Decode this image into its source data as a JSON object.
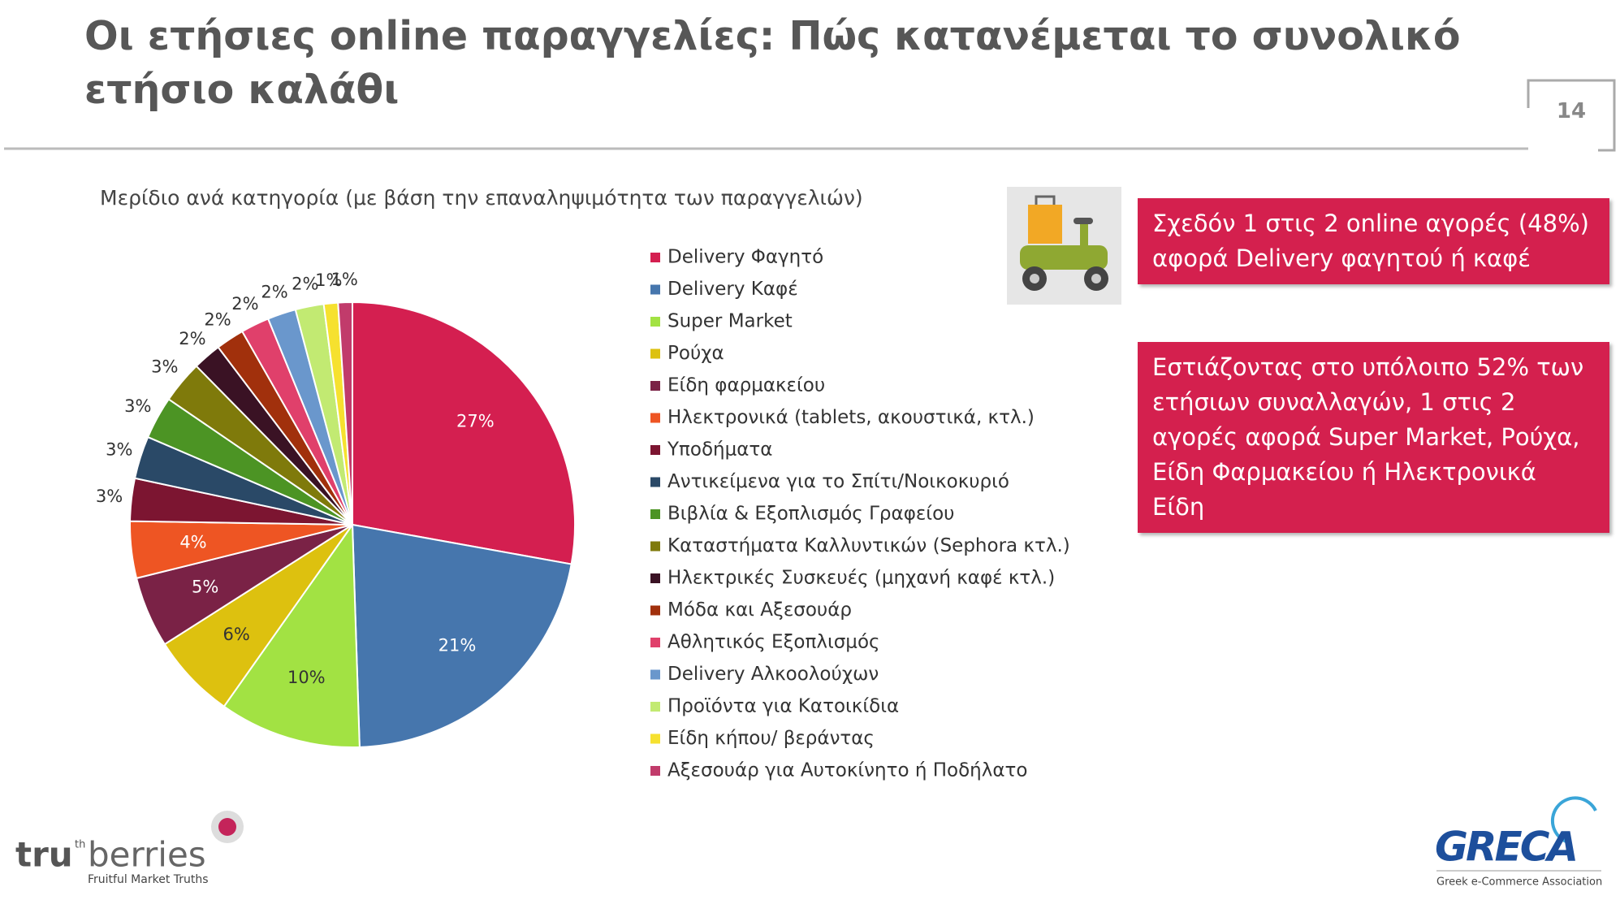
{
  "header": {
    "title": "Οι ετήσιες online παραγγελίες: Πώς κατανέμεται το συνολικό ετήσιο καλάθι",
    "page": "14"
  },
  "chart_data": {
    "type": "pie",
    "title": "Μερίδιο ανά κατηγορία (με βάση την επαναληψιμότητα των παραγγελιών)",
    "categories": [
      "Delivery Φαγητό",
      "Delivery Καφέ",
      "Super Market",
      "Ρούχα",
      "Είδη φαρμακείου",
      "Ηλεκτρονικά (tablets, ακουστικά, κτλ.)",
      "Υποδήματα",
      "Αντικείμενα για το Σπίτι/Νοικοκυριό",
      "Βιβλία & Εξοπλισμός Γραφείου",
      "Καταστήματα Καλλυντικών (Sephora κτλ.)",
      "Ηλεκτρικές Συσκευές (μηχανή καφέ κτλ.)",
      "Μόδα και Αξεσουάρ",
      "Αθλητικός Εξοπλισμός",
      "Delivery Αλκοολούχων",
      "Προϊόντα για Κατοικίδια",
      "Είδη κήπου/ βεράντας",
      "Αξεσουάρ για Αυτοκίνητο ή Ποδήλατο"
    ],
    "values": [
      27,
      21,
      10,
      6,
      5,
      4,
      3,
      3,
      3,
      3,
      2,
      2,
      2,
      2,
      2,
      1,
      1
    ],
    "value_labels": [
      "27%",
      "21%",
      "10%",
      "6%",
      "5%",
      "4%",
      "3%",
      "3%",
      "3%",
      "3%",
      "2%",
      "2%",
      "2%",
      "2%",
      "2%",
      "1%",
      "1%"
    ],
    "colors": [
      "#d41f50",
      "#4676ad",
      "#a2e243",
      "#ddc10f",
      "#7a2246",
      "#ee5523",
      "#7c1531",
      "#2a4967",
      "#4c9424",
      "#7f7a0b",
      "#3a1224",
      "#a1300c",
      "#e0406b",
      "#6a97cc",
      "#c2ea72",
      "#f6e12f",
      "#c13b6b"
    ],
    "legend": "right"
  },
  "callouts": [
    "Σχεδόν 1 στις 2 online αγορές (48%) αφορά Delivery φαγητού ή καφέ",
    "Εστιάζοντας στο υπόλοιπο 52% των ετήσιων συναλλαγών, 1 στις 2 αγορές αφορά Super Market, Ρούχα, Είδη Φαρμακείου ή Ηλεκτρονικά Είδη"
  ],
  "logos": {
    "left": {
      "a": "tru",
      "b": "th",
      "c": "berries",
      "tagline": "Fruitful Market Truths"
    },
    "right": {
      "name": "GRECA",
      "tagline": "Greek e-Commerce Association"
    }
  }
}
